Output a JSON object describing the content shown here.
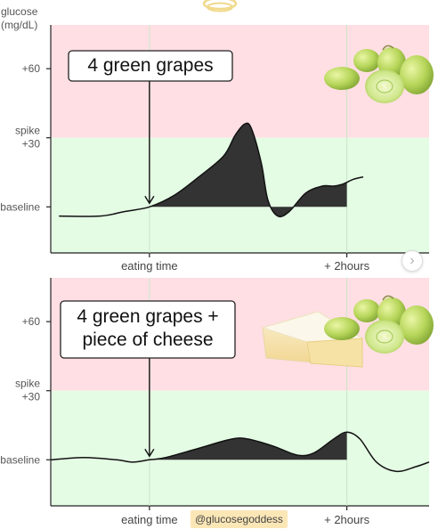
{
  "chart_data": [
    {
      "type": "line",
      "title": "",
      "ylabel": "glucose (mg/dL)",
      "xlabel": "",
      "y_tick_labels": [
        "+60",
        "spike +30",
        "baseline"
      ],
      "y_ticks": [
        60,
        30,
        0
      ],
      "ylim": [
        -20,
        79
      ],
      "x_ticks": [
        {
          "label": "eating time",
          "x": 0
        },
        {
          "label": "+ 2hours",
          "x": 120
        }
      ],
      "xlim": [
        -60,
        170
      ],
      "shaded_bands": [
        {
          "name": "spike zone",
          "from": 30,
          "to": 79,
          "color": "#ffdfe3"
        },
        {
          "name": "normal zone",
          "from": -20,
          "to": 30,
          "color": "#e4fbe4"
        }
      ],
      "annotation": {
        "text": "4 green grapes",
        "x": 0
      },
      "images": [
        "green-grapes"
      ],
      "shaded_area": {
        "from": 0,
        "to": 120,
        "baseline": 0,
        "color": "#333333"
      },
      "series": [
        {
          "name": "",
          "x": [
            -55,
            -30,
            -15,
            0,
            15,
            30,
            45,
            52,
            58,
            62,
            68,
            72,
            78,
            85,
            95,
            105,
            112,
            118,
            124,
            130
          ],
          "y": [
            -4,
            -4,
            -2,
            0,
            5,
            13,
            22,
            31,
            36,
            34,
            19,
            3,
            -4,
            -2,
            6,
            9,
            9,
            10,
            12,
            13
          ]
        }
      ]
    },
    {
      "type": "line",
      "title": "",
      "ylabel": "",
      "xlabel": "",
      "y_tick_labels": [
        "+60",
        "spike +30",
        "baseline"
      ],
      "y_ticks": [
        60,
        30,
        0
      ],
      "ylim": [
        -20,
        79
      ],
      "x_ticks": [
        {
          "label": "eating time",
          "x": 0
        },
        {
          "label": "+ 2hours",
          "x": 120
        }
      ],
      "xlim": [
        -60,
        170
      ],
      "shaded_bands": [
        {
          "name": "spike zone",
          "from": 30,
          "to": 79,
          "color": "#ffdfe3"
        },
        {
          "name": "normal zone",
          "from": -20,
          "to": 30,
          "color": "#e4fbe4"
        }
      ],
      "annotation": {
        "text": "4 green grapes + piece of cheese",
        "lines": [
          "4 green grapes +",
          "piece of cheese"
        ],
        "x": 0
      },
      "images": [
        "cheese-wedge",
        "green-grapes"
      ],
      "shaded_area": {
        "from": 0,
        "to": 120,
        "baseline": 0,
        "color": "#333333"
      },
      "series": [
        {
          "name": "",
          "x": [
            -60,
            -40,
            -20,
            -10,
            0,
            10,
            30,
            50,
            60,
            75,
            90,
            100,
            112,
            120,
            128,
            138,
            150,
            162,
            170
          ],
          "y": [
            0,
            1,
            0,
            -1,
            0,
            1,
            5,
            9,
            9,
            6,
            2,
            3,
            9,
            12,
            9,
            -1,
            -5,
            -3,
            -1
          ]
        }
      ]
    }
  ],
  "watermark": {
    "credit": "@glucosegoddess"
  },
  "nav": {
    "next_glyph": "›"
  }
}
